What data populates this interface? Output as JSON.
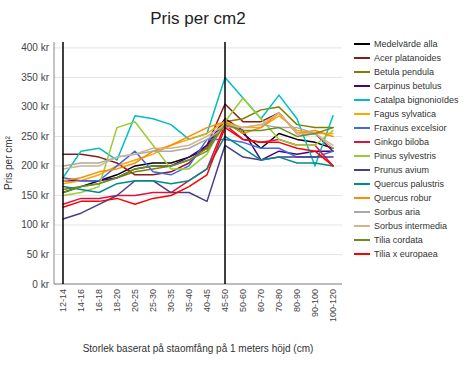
{
  "chart_data": {
    "type": "line",
    "title": "Pris per cm2",
    "xlabel": "Storlek baserat på staomfång på 1 meters höjd (cm)",
    "ylabel": "Pris per cm²",
    "categories": [
      "12-14",
      "14-16",
      "16-18",
      "18-20",
      "20-25",
      "25-30",
      "30-35",
      "35-40",
      "40-45",
      "45-50",
      "50-60",
      "60-70",
      "70-80",
      "80-90",
      "90-100",
      "100-120"
    ],
    "ylim": [
      0,
      410
    ],
    "yticks": [
      {
        "value": 0,
        "label": "0 kr"
      },
      {
        "value": 50,
        "label": "50 kr"
      },
      {
        "value": 100,
        "label": "100 kr"
      },
      {
        "value": 150,
        "label": "150 kr"
      },
      {
        "value": 200,
        "label": "200 kr"
      },
      {
        "value": 250,
        "label": "250 kr"
      },
      {
        "value": 300,
        "label": "300 kr"
      },
      {
        "value": 350,
        "label": "350 kr"
      },
      {
        "value": 400,
        "label": "400 kr"
      }
    ],
    "grid": true,
    "legend": "right",
    "vlines": [
      "12-14",
      "45-50"
    ],
    "series": [
      {
        "name": "Medelvärde alla",
        "color": "#000000",
        "values": [
          155,
          165,
          175,
          185,
          200,
          205,
          205,
          215,
          230,
          275,
          255,
          230,
          255,
          245,
          240,
          230
        ]
      },
      {
        "name": "Acer platanoides",
        "color": "#8B1A1A",
        "values": [
          220,
          220,
          215,
          205,
          185,
          185,
          190,
          205,
          235,
          305,
          275,
          275,
          290,
          255,
          255,
          225
        ]
      },
      {
        "name": "Betula pendula",
        "color": "#808000",
        "values": [
          160,
          165,
          170,
          180,
          190,
          195,
          200,
          210,
          230,
          275,
          280,
          295,
          300,
          270,
          265,
          265
        ]
      },
      {
        "name": "Carpinus betulus",
        "color": "#4B0082",
        "values": [
          175,
          175,
          175,
          180,
          195,
          200,
          200,
          215,
          235,
          280,
          260,
          210,
          225,
          220,
          225,
          225
        ]
      },
      {
        "name": "Catalpa bignonioïdes",
        "color": "#00BFBF",
        "values": [
          180,
          225,
          230,
          210,
          285,
          280,
          270,
          245,
          255,
          350,
          315,
          280,
          320,
          280,
          200,
          285
        ]
      },
      {
        "name": "Fagus sylvatica",
        "color": "#FFA500",
        "values": [
          170,
          175,
          185,
          200,
          210,
          220,
          235,
          245,
          255,
          275,
          265,
          265,
          285,
          260,
          255,
          255
        ]
      },
      {
        "name": "Fraxinus excelsior",
        "color": "#4169E1",
        "values": [
          180,
          175,
          175,
          200,
          225,
          190,
          185,
          200,
          245,
          245,
          240,
          230,
          230,
          215,
          215,
          225
        ]
      },
      {
        "name": "Ginkgo biloba",
        "color": "#DC143C",
        "values": [
          135,
          145,
          145,
          150,
          150,
          155,
          155,
          175,
          195,
          270,
          245,
          240,
          245,
          235,
          235,
          200
        ]
      },
      {
        "name": "Pinus sylvestris",
        "color": "#9ACD32",
        "values": [
          150,
          155,
          165,
          265,
          275,
          235,
          195,
          195,
          220,
          275,
          315,
          280,
          245,
          235,
          235,
          260
        ]
      },
      {
        "name": "Prunus avium",
        "color": "#483D8B",
        "values": [
          110,
          120,
          135,
          150,
          175,
          175,
          155,
          155,
          140,
          235,
          215,
          210,
          215,
          215,
          215,
          215
        ]
      },
      {
        "name": "Quercus palustris",
        "color": "#008B8B",
        "values": [
          165,
          160,
          155,
          170,
          175,
          175,
          170,
          175,
          195,
          250,
          230,
          210,
          215,
          205,
          205,
          200
        ]
      },
      {
        "name": "Quercus robur",
        "color": "#FF8C00",
        "values": [
          175,
          180,
          190,
          195,
          205,
          225,
          235,
          250,
          265,
          275,
          255,
          265,
          290,
          255,
          260,
          250
        ]
      },
      {
        "name": "Sorbus aria",
        "color": "#A9A9A9",
        "values": [
          200,
          205,
          205,
          215,
          220,
          225,
          225,
          230,
          245,
          265,
          265,
          270,
          265,
          265,
          255,
          230
        ]
      },
      {
        "name": "Sorbus intermedia",
        "color": "#D2B48C",
        "values": [
          195,
          200,
          200,
          215,
          220,
          230,
          230,
          235,
          250,
          270,
          265,
          270,
          290,
          255,
          255,
          235
        ]
      },
      {
        "name": "Tilia cordata",
        "color": "#6B8E23",
        "values": [
          155,
          165,
          170,
          180,
          195,
          200,
          200,
          210,
          225,
          270,
          260,
          260,
          265,
          250,
          255,
          265
        ]
      },
      {
        "name": "Tilia x europaea",
        "color": "#FF0000",
        "values": [
          130,
          140,
          140,
          145,
          135,
          145,
          150,
          165,
          185,
          265,
          245,
          240,
          240,
          230,
          225,
          200
        ]
      }
    ]
  }
}
